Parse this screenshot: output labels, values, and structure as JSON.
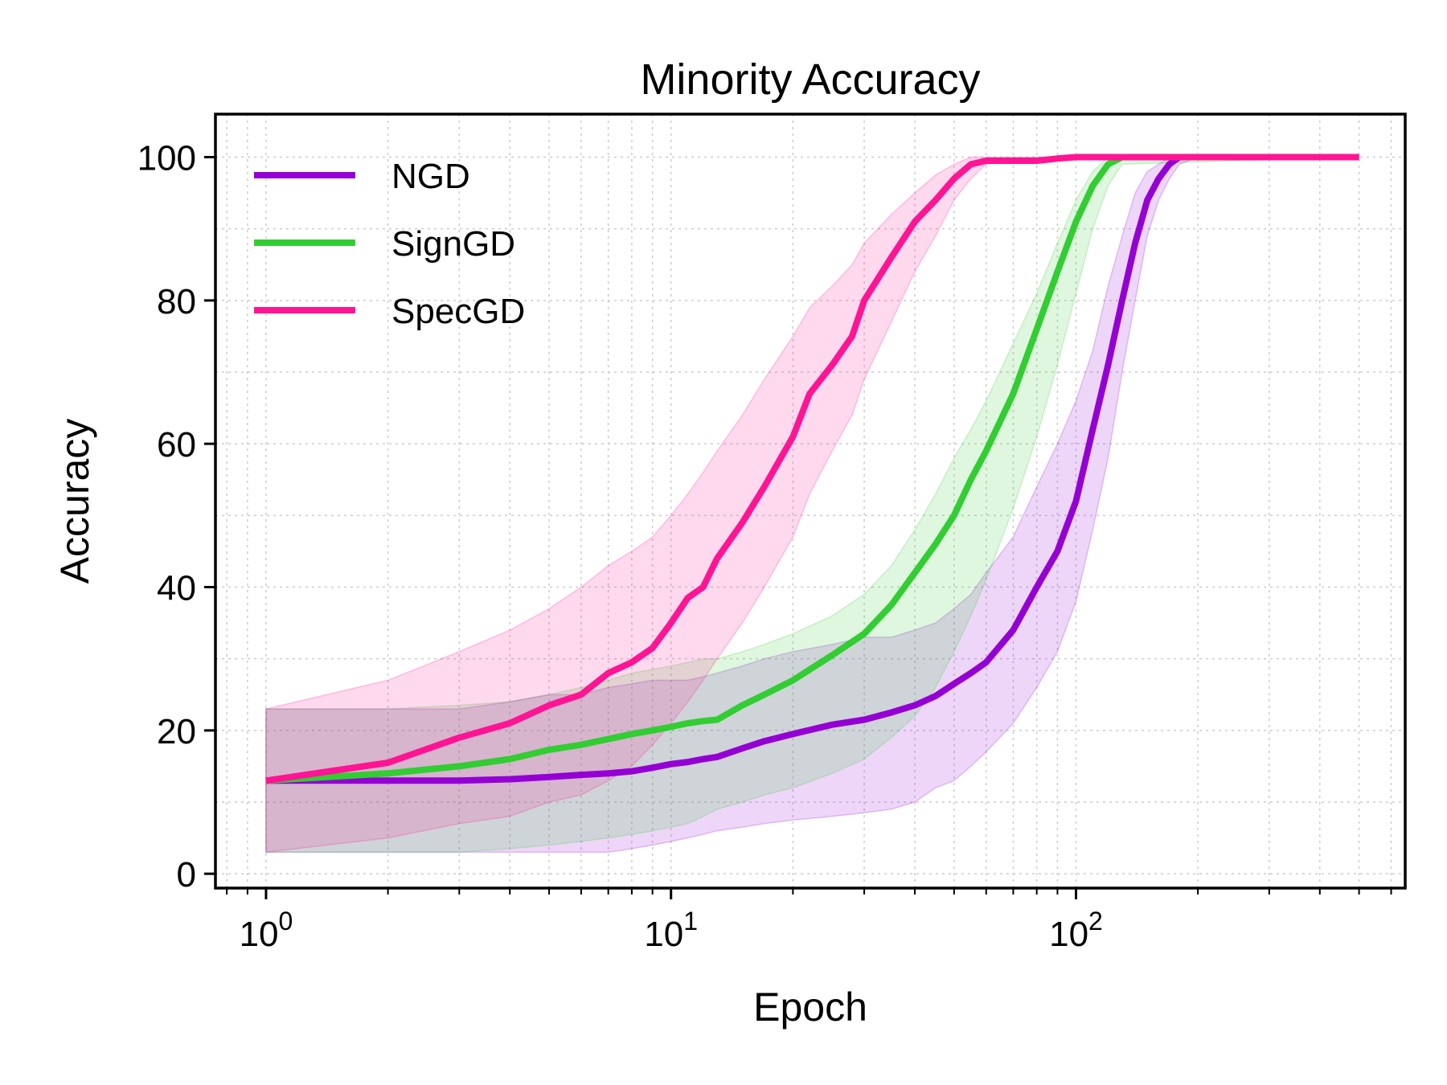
{
  "chart_data": {
    "type": "line",
    "title": "Minority Accuracy",
    "xlabel": "Epoch",
    "ylabel": "Accuracy",
    "xscale": "log",
    "xlim": [
      0.75,
      650
    ],
    "ylim": [
      -2,
      106
    ],
    "grid": true,
    "legend_position": "top-left",
    "x_ticks": [
      {
        "value": 1,
        "base": "10",
        "exp": "0"
      },
      {
        "value": 10,
        "base": "10",
        "exp": "1"
      },
      {
        "value": 100,
        "base": "10",
        "exp": "2"
      }
    ],
    "y_ticks": [
      {
        "value": 0,
        "label": "0"
      },
      {
        "value": 20,
        "label": "20"
      },
      {
        "value": 40,
        "label": "40"
      },
      {
        "value": 60,
        "label": "60"
      },
      {
        "value": 80,
        "label": "80"
      },
      {
        "value": 100,
        "label": "100"
      }
    ],
    "series": [
      {
        "name": "NGD",
        "color": "#9400D3",
        "x": [
          1,
          2,
          3,
          4,
          5,
          6,
          7,
          8,
          9,
          10,
          11,
          12,
          13,
          15,
          17,
          20,
          25,
          30,
          35,
          40,
          45,
          50,
          55,
          60,
          70,
          80,
          90,
          100,
          110,
          120,
          130,
          140,
          150,
          160,
          170,
          180,
          200,
          500
        ],
        "y": [
          13,
          13,
          13,
          13.2,
          13.5,
          13.8,
          14,
          14.3,
          14.8,
          15.3,
          15.6,
          16,
          16.3,
          17.5,
          18.5,
          19.5,
          20.8,
          21.5,
          22.5,
          23.5,
          24.8,
          26.5,
          28,
          29.5,
          34,
          40,
          45,
          52,
          62,
          71,
          80,
          88,
          94,
          97,
          99,
          100,
          100,
          100
        ],
        "lower": [
          3,
          3,
          3,
          3,
          3,
          3,
          3,
          3.5,
          4,
          4.5,
          5,
          5.5,
          6,
          6.5,
          7,
          7.5,
          8,
          8.5,
          9,
          10,
          12,
          13,
          15,
          17,
          21,
          26,
          31,
          38,
          48,
          58,
          70,
          80,
          89,
          94,
          97,
          99,
          100,
          100
        ],
        "upper": [
          23,
          23,
          23,
          24,
          25,
          25,
          26,
          26.5,
          27,
          27,
          27,
          27.5,
          28,
          29,
          30,
          31,
          32,
          33,
          33,
          34,
          35,
          37,
          39,
          42,
          47,
          54,
          60,
          66,
          73,
          82,
          89,
          95,
          98,
          99,
          100,
          100,
          100,
          100
        ]
      },
      {
        "name": "SignGD",
        "color": "#32CD32",
        "x": [
          1,
          2,
          3,
          4,
          5,
          6,
          7,
          8,
          9,
          10,
          11,
          12,
          13,
          15,
          17,
          20,
          25,
          30,
          35,
          40,
          45,
          50,
          55,
          60,
          70,
          80,
          90,
          100,
          110,
          120,
          130,
          500
        ],
        "y": [
          13,
          14,
          15,
          16,
          17.3,
          18,
          18.8,
          19.5,
          20,
          20.5,
          21,
          21.3,
          21.5,
          23.5,
          25,
          27,
          30.5,
          33.5,
          37.5,
          42,
          46,
          50,
          55,
          59,
          67,
          76,
          84,
          91,
          96,
          99,
          100,
          100
        ],
        "lower": [
          3,
          3,
          3,
          3.5,
          4,
          4.5,
          5,
          5.5,
          6,
          6.5,
          7,
          8,
          9,
          10,
          11,
          12,
          14,
          16,
          19,
          22,
          26,
          31,
          36,
          41,
          51,
          61,
          71,
          81,
          90,
          96,
          99,
          100
        ],
        "upper": [
          23,
          23,
          23.5,
          24,
          25,
          26,
          27,
          28,
          28.5,
          29,
          29.5,
          30,
          30,
          31,
          32,
          33.5,
          36,
          39,
          43,
          48,
          53,
          58,
          62,
          66,
          74,
          81,
          88,
          94,
          98,
          100,
          100,
          100
        ]
      },
      {
        "name": "SpecGD",
        "color": "#FF1493",
        "x": [
          1,
          2,
          3,
          4,
          5,
          6,
          7,
          8,
          9,
          10,
          11,
          12,
          13,
          15,
          17,
          20,
          22,
          25,
          28,
          30,
          35,
          40,
          45,
          50,
          55,
          60,
          70,
          80,
          90,
          100,
          500
        ],
        "y": [
          13,
          15.5,
          19,
          21,
          23.5,
          25,
          28,
          29.5,
          31.5,
          35,
          38.5,
          40,
          44,
          49,
          54,
          61,
          67,
          71,
          75,
          80,
          86,
          91,
          94,
          97,
          99,
          99.5,
          99.5,
          99.5,
          99.8,
          100,
          100
        ],
        "lower": [
          3,
          5,
          7,
          8,
          10,
          11,
          13,
          15,
          18,
          21,
          24,
          27,
          30,
          35,
          40,
          47,
          53,
          59,
          64,
          69,
          77,
          84,
          89,
          94,
          97,
          99,
          99.5,
          99.5,
          99.8,
          100,
          100
        ],
        "upper": [
          23,
          27,
          31,
          34,
          37,
          40,
          43,
          45,
          47,
          50,
          53,
          56,
          59,
          64,
          69,
          75,
          79,
          82,
          85,
          88,
          92,
          95,
          97.5,
          99,
          100,
          100,
          100,
          100,
          100,
          100,
          100
        ]
      }
    ]
  }
}
